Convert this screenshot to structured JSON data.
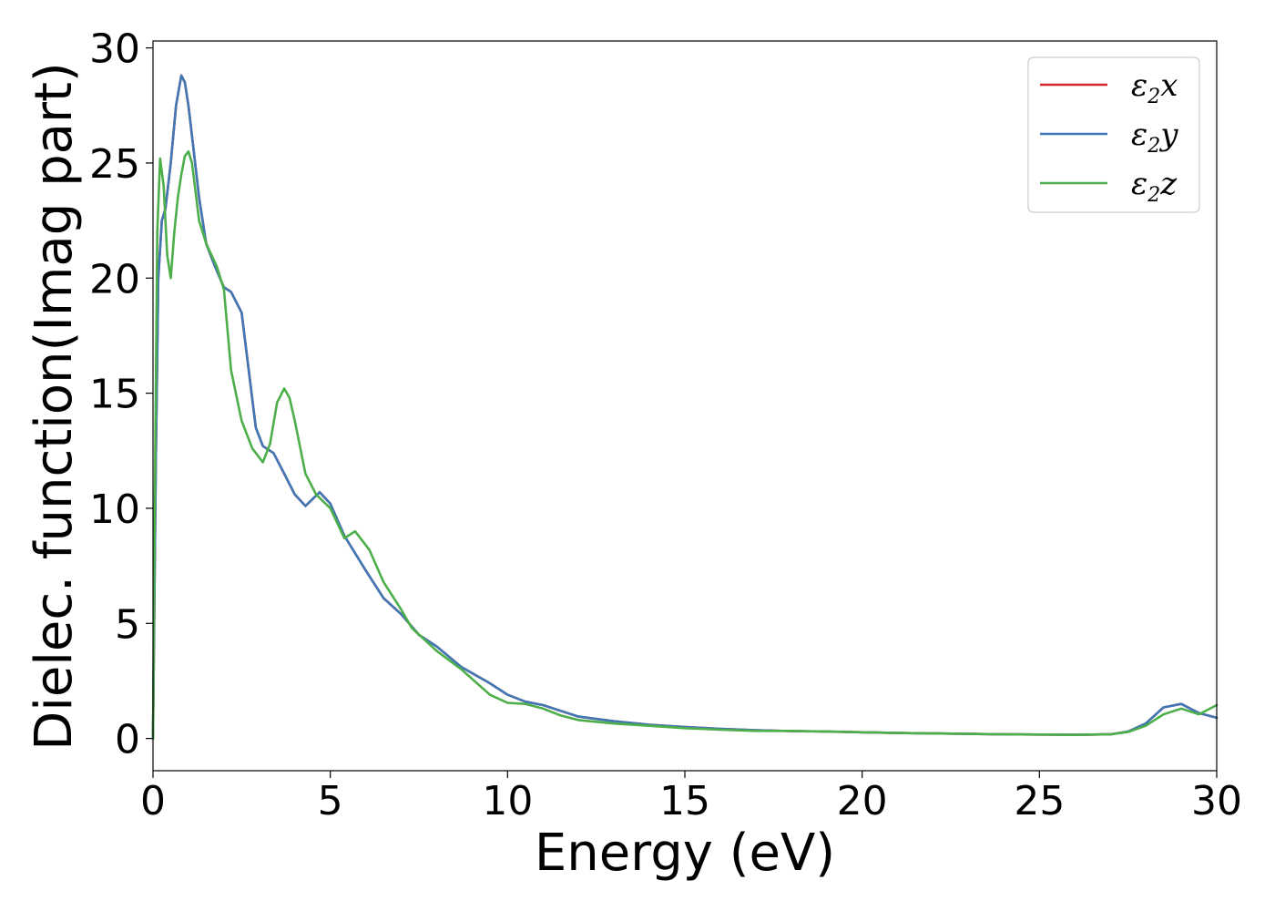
{
  "chart_data": {
    "type": "line",
    "xlabel": "Energy (eV)",
    "ylabel": "Dielec. function(Imag part)",
    "xlim": [
      0,
      30
    ],
    "ylim": [
      -1.4,
      30.3
    ],
    "xticks": [
      0,
      5,
      10,
      15,
      20,
      25,
      30
    ],
    "yticks": [
      0,
      5,
      10,
      15,
      20,
      25,
      30
    ],
    "grid": false,
    "legend_position": "top-right",
    "series": [
      {
        "name": "ε2x",
        "legend_main": "ε",
        "legend_sub": "2",
        "legend_suffix": "x",
        "color": "#d62728",
        "x": [
          0,
          0.08,
          0.15,
          0.25,
          0.35,
          0.5,
          0.65,
          0.8,
          0.9,
          1.0,
          1.15,
          1.3,
          1.5,
          1.75,
          2.0,
          2.2,
          2.5,
          2.7,
          2.9,
          3.1,
          3.4,
          3.7,
          4.0,
          4.3,
          4.7,
          5.0,
          5.4,
          6.0,
          6.5,
          7.0,
          7.5,
          8.0,
          8.7,
          9.5,
          10.0,
          10.5,
          11.0,
          11.5,
          12.0,
          13.0,
          14.0,
          15.0,
          16.0,
          17.0,
          18.0,
          19.0,
          20.0,
          21.0,
          22.0,
          23.0,
          24.0,
          25.0,
          26.0,
          27.0,
          27.5,
          28.0,
          28.5,
          29.0,
          29.5,
          30.0
        ],
        "y": [
          0,
          12,
          20,
          22.5,
          23,
          25,
          27.5,
          28.8,
          28.5,
          27.5,
          25.5,
          23.5,
          21.5,
          20.5,
          19.6,
          19.4,
          18.5,
          16,
          13.5,
          12.7,
          12.4,
          11.5,
          10.6,
          10.1,
          10.7,
          10.2,
          8.8,
          7.3,
          6.1,
          5.4,
          4.5,
          4.0,
          3.1,
          2.4,
          1.9,
          1.6,
          1.45,
          1.2,
          0.95,
          0.75,
          0.6,
          0.5,
          0.42,
          0.36,
          0.32,
          0.3,
          0.27,
          0.24,
          0.22,
          0.2,
          0.18,
          0.17,
          0.16,
          0.18,
          0.3,
          0.65,
          1.35,
          1.5,
          1.1,
          0.9
        ]
      },
      {
        "name": "ε2y",
        "legend_main": "ε",
        "legend_sub": "2",
        "legend_suffix": "y",
        "color": "#3f78b5",
        "x": [
          0,
          0.08,
          0.15,
          0.25,
          0.35,
          0.5,
          0.65,
          0.8,
          0.9,
          1.0,
          1.15,
          1.3,
          1.5,
          1.75,
          2.0,
          2.2,
          2.5,
          2.7,
          2.9,
          3.1,
          3.4,
          3.7,
          4.0,
          4.3,
          4.7,
          5.0,
          5.4,
          6.0,
          6.5,
          7.0,
          7.5,
          8.0,
          8.7,
          9.5,
          10.0,
          10.5,
          11.0,
          11.5,
          12.0,
          13.0,
          14.0,
          15.0,
          16.0,
          17.0,
          18.0,
          19.0,
          20.0,
          21.0,
          22.0,
          23.0,
          24.0,
          25.0,
          26.0,
          27.0,
          27.5,
          28.0,
          28.5,
          29.0,
          29.5,
          30.0
        ],
        "y": [
          0,
          12,
          20,
          22.5,
          23,
          25,
          27.5,
          28.8,
          28.5,
          27.5,
          25.5,
          23.5,
          21.5,
          20.5,
          19.6,
          19.4,
          18.5,
          16,
          13.5,
          12.7,
          12.4,
          11.5,
          10.6,
          10.1,
          10.7,
          10.2,
          8.8,
          7.3,
          6.1,
          5.4,
          4.5,
          4.0,
          3.1,
          2.4,
          1.9,
          1.6,
          1.45,
          1.2,
          0.95,
          0.75,
          0.6,
          0.5,
          0.42,
          0.36,
          0.32,
          0.3,
          0.27,
          0.24,
          0.22,
          0.2,
          0.18,
          0.17,
          0.16,
          0.18,
          0.3,
          0.65,
          1.35,
          1.5,
          1.1,
          0.9
        ]
      },
      {
        "name": "ε2z",
        "legend_main": "ε",
        "legend_sub": "2",
        "legend_suffix": "z",
        "color": "#4daf4a",
        "x": [
          0,
          0.05,
          0.12,
          0.2,
          0.3,
          0.4,
          0.5,
          0.6,
          0.7,
          0.8,
          0.9,
          1.0,
          1.1,
          1.3,
          1.5,
          1.8,
          2.0,
          2.2,
          2.5,
          2.8,
          3.1,
          3.3,
          3.5,
          3.7,
          3.85,
          4.0,
          4.3,
          4.6,
          5.0,
          5.4,
          5.7,
          6.1,
          6.5,
          7.0,
          7.3,
          8.0,
          8.7,
          9.5,
          10.0,
          10.5,
          11.0,
          11.5,
          12.0,
          13.0,
          14.0,
          15.0,
          16.0,
          17.0,
          18.0,
          19.0,
          20.0,
          21.0,
          22.0,
          23.0,
          24.0,
          25.0,
          26.0,
          27.0,
          27.5,
          28.0,
          28.5,
          29.0,
          29.5,
          30.0
        ],
        "y": [
          0,
          10,
          22,
          25.2,
          24,
          21,
          20,
          22,
          23.5,
          24.5,
          25.3,
          25.5,
          25,
          22.5,
          21.5,
          20.5,
          19.5,
          16,
          13.8,
          12.6,
          12.0,
          12.8,
          14.6,
          15.2,
          14.8,
          13.8,
          11.5,
          10.6,
          10.0,
          8.7,
          9.0,
          8.2,
          6.8,
          5.6,
          4.8,
          3.8,
          3.0,
          1.9,
          1.55,
          1.5,
          1.3,
          1.0,
          0.8,
          0.65,
          0.55,
          0.45,
          0.38,
          0.33,
          0.33,
          0.3,
          0.27,
          0.24,
          0.22,
          0.2,
          0.18,
          0.17,
          0.16,
          0.18,
          0.28,
          0.55,
          1.05,
          1.3,
          1.05,
          1.45
        ]
      }
    ]
  }
}
